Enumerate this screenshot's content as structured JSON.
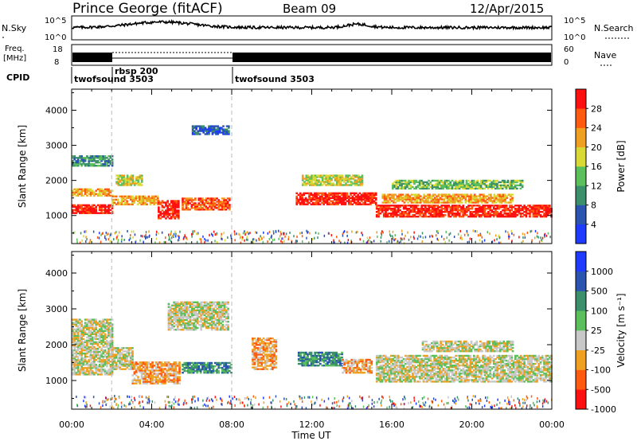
{
  "header": {
    "station": "Prince George (fitACF)",
    "beam": "Beam 09",
    "date": "12/Apr/2015"
  },
  "panels": {
    "noise": {
      "left_label": "N.Sky",
      "right_label": "N.Search",
      "left_ticks": [
        "10^5",
        "10^0"
      ],
      "right_ticks": [
        "10^5",
        "10^0"
      ]
    },
    "freq": {
      "left_label_top": "Freq.",
      "left_label_unit": "[MHz]",
      "right_label": "Nave",
      "left_ticks": [
        "18",
        "8"
      ],
      "right_ticks": [
        "60",
        "0"
      ]
    },
    "cpid": {
      "label": "CPID",
      "segments": [
        "twofsound 3503",
        "rbsp 200",
        "twofsound 3503"
      ]
    }
  },
  "chart_data": [
    {
      "type": "heatmap",
      "title": "",
      "xlabel": "",
      "ylabel": "Slant Range [km]",
      "y_ticks": [
        1000,
        2000,
        3000,
        4000
      ],
      "ylim": [
        200,
        4600
      ],
      "x_ticks": [
        "00:00",
        "04:00",
        "08:00",
        "12:00",
        "16:00",
        "20:00",
        "00:00"
      ],
      "xlim_hours": [
        0,
        24
      ],
      "colorbar": {
        "label": "Power [dB]",
        "ticks": [
          "4",
          "8",
          "12",
          "16",
          "20",
          "24",
          "28"
        ],
        "colors": [
          "#1f3bff",
          "#2a54b0",
          "#3b8f6b",
          "#5bbf5b",
          "#d9d936",
          "#f0a020",
          "#ff5a10",
          "#ff1010"
        ]
      },
      "scatter_echo_bands": [
        {
          "t0": 0.0,
          "t1": 2.0,
          "range": [
            1050,
            1300
          ],
          "level": 7
        },
        {
          "t0": 0.0,
          "t1": 2.0,
          "range": [
            1550,
            1750
          ],
          "level": 5
        },
        {
          "t0": 0.0,
          "t1": 2.0,
          "range": [
            2400,
            2700
          ],
          "level": 2
        },
        {
          "t0": 2.0,
          "t1": 4.3,
          "range": [
            1300,
            1550
          ],
          "level": 5
        },
        {
          "t0": 2.2,
          "t1": 3.5,
          "range": [
            1850,
            2150
          ],
          "level": 4
        },
        {
          "t0": 4.3,
          "t1": 5.3,
          "range": [
            900,
            1400
          ],
          "level": 7
        },
        {
          "t0": 5.5,
          "t1": 7.9,
          "range": [
            1150,
            1500
          ],
          "level": 6
        },
        {
          "t0": 6.0,
          "t1": 7.8,
          "range": [
            3300,
            3550
          ],
          "level": 1
        },
        {
          "t0": 11.2,
          "t1": 15.2,
          "range": [
            1300,
            1650
          ],
          "level": 7
        },
        {
          "t0": 11.5,
          "t1": 14.5,
          "range": [
            1850,
            2150
          ],
          "level": 4
        },
        {
          "t0": 15.2,
          "t1": 24.0,
          "range": [
            950,
            1300
          ],
          "level": 7
        },
        {
          "t0": 15.5,
          "t1": 22.0,
          "range": [
            1350,
            1600
          ],
          "level": 5
        },
        {
          "t0": 16.0,
          "t1": 22.5,
          "range": [
            1750,
            2000
          ],
          "level": 3
        }
      ]
    },
    {
      "type": "heatmap",
      "title": "",
      "xlabel": "Time UT",
      "ylabel": "Slant Range [km]",
      "y_ticks": [
        1000,
        2000,
        3000,
        4000
      ],
      "ylim": [
        200,
        4600
      ],
      "x_ticks": [
        "00:00",
        "04:00",
        "08:00",
        "12:00",
        "16:00",
        "20:00",
        "00:00"
      ],
      "xlim_hours": [
        0,
        24
      ],
      "colorbar": {
        "label": "Velocity [m s⁻¹]",
        "ticks": [
          "1000",
          "500",
          "100",
          "25",
          "-25",
          "-100",
          "-500",
          "-1000"
        ],
        "colors": [
          "#1f3bff",
          "#2a54b0",
          "#3b8f6b",
          "#5bbf5b",
          "#c8c8c8",
          "#f0a020",
          "#ff5a10",
          "#ff1010"
        ]
      },
      "scatter_echo_bands": [
        {
          "t0": 0.0,
          "t1": 2.0,
          "range": [
            1150,
            2700
          ],
          "level": 4
        },
        {
          "t0": 2.0,
          "t1": 3.0,
          "range": [
            1300,
            1900
          ],
          "level": 4
        },
        {
          "t0": 3.0,
          "t1": 5.4,
          "range": [
            900,
            1500
          ],
          "level": 5
        },
        {
          "t0": 5.5,
          "t1": 8.0,
          "range": [
            1200,
            1500
          ],
          "level": 2
        },
        {
          "t0": 4.8,
          "t1": 7.8,
          "range": [
            2400,
            3200
          ],
          "level": 4
        },
        {
          "t0": 9.0,
          "t1": 10.2,
          "range": [
            1300,
            2200
          ],
          "level": 5
        },
        {
          "t0": 11.3,
          "t1": 13.5,
          "range": [
            1400,
            1800
          ],
          "level": 2
        },
        {
          "t0": 13.5,
          "t1": 15.0,
          "range": [
            1200,
            1600
          ],
          "level": 5
        },
        {
          "t0": 15.2,
          "t1": 24.0,
          "range": [
            950,
            1700
          ],
          "level": 4
        },
        {
          "t0": 17.5,
          "t1": 22.0,
          "range": [
            1800,
            2100
          ],
          "level": 4
        }
      ]
    }
  ]
}
